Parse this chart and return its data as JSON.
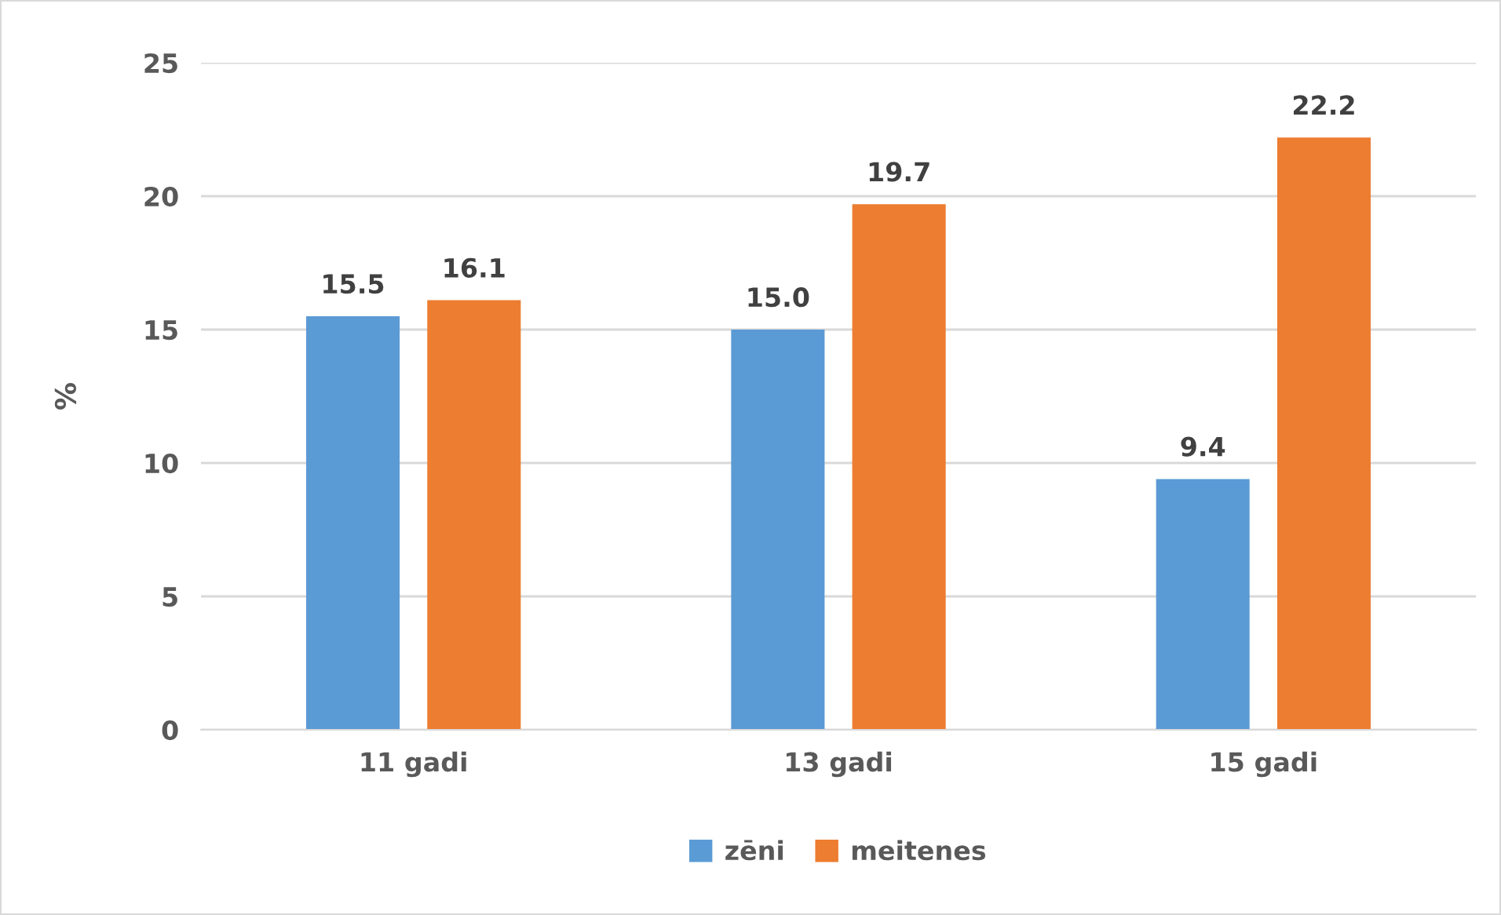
{
  "chart_data": {
    "type": "bar",
    "ylabel": "%",
    "categories": [
      "11 gadi",
      "13 gadi",
      "15 gadi"
    ],
    "series": [
      {
        "name": "zēni",
        "color": "#5b9bd5",
        "values": [
          15.5,
          15.0,
          9.4
        ],
        "value_labels": [
          "15.5",
          "15.0",
          "9.4"
        ]
      },
      {
        "name": "meitenes",
        "color": "#ed7d31",
        "values": [
          16.1,
          19.7,
          22.2
        ],
        "value_labels": [
          "16.1",
          "19.7",
          "22.2"
        ]
      }
    ],
    "ylim": [
      0,
      25
    ],
    "yticks": [
      0,
      5,
      10,
      15,
      20,
      25
    ],
    "grid": "y",
    "legend": "bottom"
  }
}
